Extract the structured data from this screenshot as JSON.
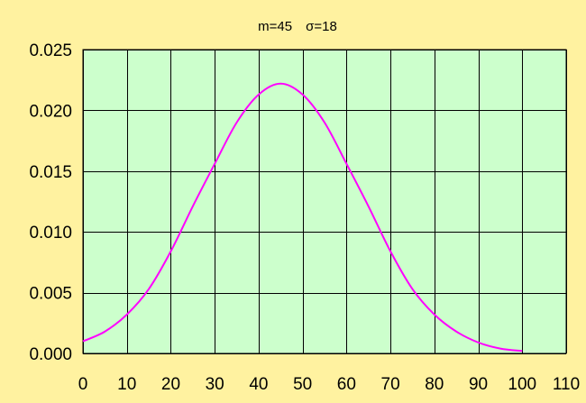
{
  "chart_data": {
    "type": "line",
    "title": "m=45　σ=18",
    "xlabel": "",
    "ylabel": "",
    "xlim": [
      0,
      110
    ],
    "ylim": [
      0,
      0.025
    ],
    "x_ticks": [
      0,
      10,
      20,
      30,
      40,
      50,
      60,
      70,
      80,
      90,
      100,
      110
    ],
    "x_tick_labels": [
      "0",
      "10",
      "20",
      "30",
      "40",
      "50",
      "60",
      "70",
      "80",
      "90",
      "100",
      "110"
    ],
    "y_ticks": [
      0,
      0.005,
      0.01,
      0.015,
      0.02,
      0.025
    ],
    "y_tick_labels": [
      "0.000",
      "0.005",
      "0.010",
      "0.015",
      "0.020",
      "0.025"
    ],
    "grid": true,
    "legend": "none",
    "series": [
      {
        "color": "#ff00ff",
        "x": [
          0,
          5,
          10,
          15,
          20,
          25,
          30,
          35,
          40,
          45,
          50,
          55,
          60,
          65,
          70,
          75,
          80,
          85,
          90,
          95,
          100
        ],
        "y": [
          0.001,
          0.0018,
          0.0032,
          0.0053,
          0.0084,
          0.0121,
          0.0156,
          0.019,
          0.0213,
          0.0222,
          0.0213,
          0.019,
          0.0156,
          0.0121,
          0.0084,
          0.0053,
          0.0032,
          0.0018,
          0.0009,
          0.0004,
          0.0002
        ]
      }
    ]
  },
  "colors": {
    "background": "#fff2a0",
    "plot_area": "#ccffcc",
    "grid": "#000000",
    "line": "#ff00ff"
  }
}
